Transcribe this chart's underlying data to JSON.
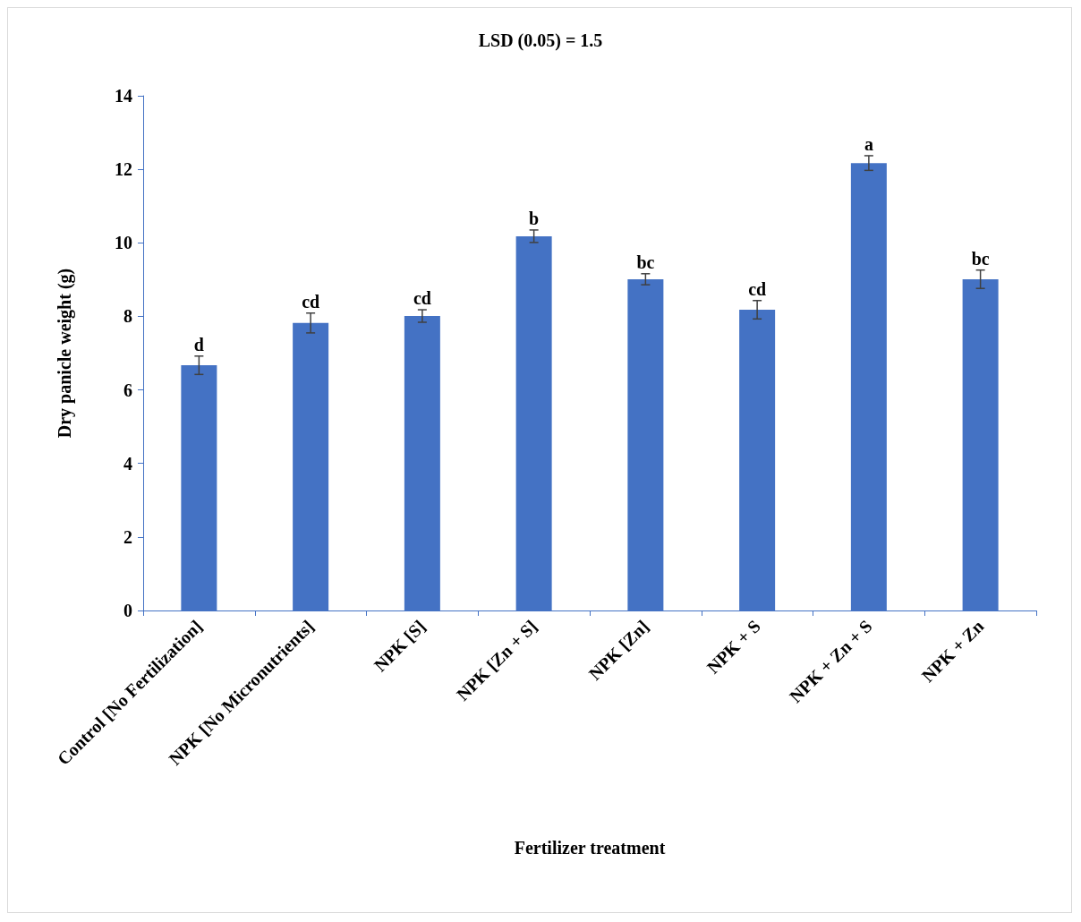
{
  "chart_data": {
    "type": "bar",
    "title": "LSD (0.05) = 1.5",
    "xlabel": "Fertilizer treatment",
    "ylabel": "Dry panicle weight (g)",
    "categories": [
      "Control [No Fertilization]",
      "NPK [No Micronutrients]",
      "NPK [S]",
      "NPK [Zn + S]",
      "NPK [Zn]",
      "NPK + S",
      "NPK + Zn + S",
      "NPK + Zn"
    ],
    "values": [
      6.67,
      7.82,
      8.01,
      10.18,
      9.01,
      8.18,
      12.17,
      9.01
    ],
    "errors": [
      0.25,
      0.27,
      0.17,
      0.17,
      0.15,
      0.25,
      0.2,
      0.25
    ],
    "color": "#4472c4",
    "ylim": [
      0,
      14
    ],
    "yticks": [
      0,
      2,
      4,
      6,
      8,
      10,
      12,
      14
    ],
    "grid": false,
    "annotations": [
      {
        "text": "d",
        "x": "Control [No Fertilization]",
        "y": 6.92
      },
      {
        "text": "cd",
        "x": "NPK [No Micronutrients]",
        "y": 8.09
      },
      {
        "text": "cd",
        "x": "NPK [S]",
        "y": 8.18
      },
      {
        "text": "b",
        "x": "NPK [Zn + S]",
        "y": 10.35
      },
      {
        "text": "bc",
        "x": "NPK [Zn]",
        "y": 9.16
      },
      {
        "text": "cd",
        "x": "NPK + S",
        "y": 8.43
      },
      {
        "text": "a",
        "x": "NPK + Zn + S",
        "y": 12.37
      },
      {
        "text": "bc",
        "x": "NPK + Zn",
        "y": 9.26
      }
    ]
  }
}
